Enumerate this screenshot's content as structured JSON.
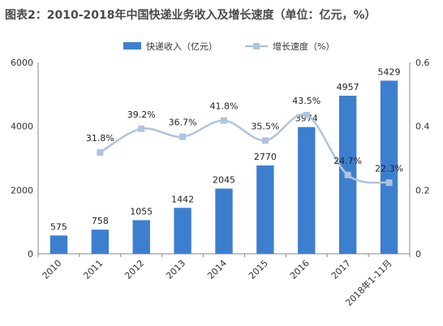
{
  "chart_data": {
    "type": "bar",
    "title": "图表2：2010-2018年中国快递业务收入及增长速度（单位：亿元，%）",
    "categories": [
      "2010",
      "2011",
      "2012",
      "2013",
      "2014",
      "2015",
      "2016",
      "2017",
      "2018年1-11月"
    ],
    "series": [
      {
        "name": "快递收入（亿元）",
        "type": "bar",
        "axis": "left",
        "color": "#3d7fcf",
        "values": [
          575,
          758,
          1055,
          1442,
          2045,
          2770,
          3974,
          4957,
          5429
        ],
        "labels": [
          "575",
          "758",
          "1055",
          "1442",
          "2045",
          "2770",
          "3974",
          "4957",
          "5429"
        ]
      },
      {
        "name": "增长速度（%）",
        "type": "line",
        "axis": "right",
        "color": "#aec4de",
        "values": [
          null,
          0.318,
          0.392,
          0.367,
          0.418,
          0.355,
          0.435,
          0.247,
          0.223
        ],
        "labels": [
          "",
          "31.8%",
          "39.2%",
          "36.7%",
          "41.8%",
          "35.5%",
          "43.5%",
          "24.7%",
          "22.3%"
        ]
      }
    ],
    "ylim": [
      0,
      6000
    ],
    "y_ticks": [
      "0",
      "2000",
      "4000",
      "6000"
    ],
    "y2lim": [
      0,
      0.6
    ],
    "y2_ticks": [
      "0",
      "0.2",
      "0.4",
      "0.6"
    ],
    "legend_position": "top-center",
    "grid": false
  }
}
